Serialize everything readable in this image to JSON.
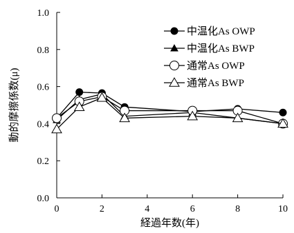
{
  "chart_data": {
    "type": "line",
    "title": "",
    "xlabel": "経過年数(年)",
    "ylabel": "動的摩擦係数(μ)",
    "xlim": [
      0,
      10
    ],
    "ylim": [
      0.0,
      1.0
    ],
    "xticks": [
      0,
      2,
      4,
      6,
      8,
      10
    ],
    "yticks": [
      0.0,
      0.2,
      0.4,
      0.6,
      0.8,
      1.0
    ],
    "ytick_labels": [
      "0.0",
      "0.2",
      "0.4",
      "0.6",
      "0.8",
      "1.0"
    ],
    "grid": false,
    "legend_position": "top-right",
    "series": [
      {
        "name": "中温化As OWP",
        "marker": "filled-circle",
        "color": "#000000",
        "x": [
          0,
          1,
          2,
          3,
          6,
          8,
          10
        ],
        "y": [
          0.43,
          0.57,
          0.565,
          0.49,
          0.465,
          0.48,
          0.46
        ]
      },
      {
        "name": "中温化As BWP",
        "marker": "filled-triangle",
        "color": "#000000",
        "x": [
          0,
          1,
          2,
          3,
          6,
          8,
          10
        ],
        "y": [
          0.42,
          0.53,
          0.56,
          0.44,
          0.46,
          0.43,
          0.4
        ]
      },
      {
        "name": "通常As OWP",
        "marker": "open-circle",
        "color": "#000000",
        "x": [
          0,
          1,
          2,
          3,
          6,
          8,
          10
        ],
        "y": [
          0.43,
          0.52,
          0.545,
          0.47,
          0.47,
          0.47,
          0.4
        ]
      },
      {
        "name": "通常As BWP",
        "marker": "open-triangle",
        "color": "#000000",
        "x": [
          0,
          1,
          2,
          3,
          6,
          8,
          10
        ],
        "y": [
          0.37,
          0.49,
          0.54,
          0.43,
          0.44,
          0.43,
          0.4
        ]
      }
    ]
  }
}
